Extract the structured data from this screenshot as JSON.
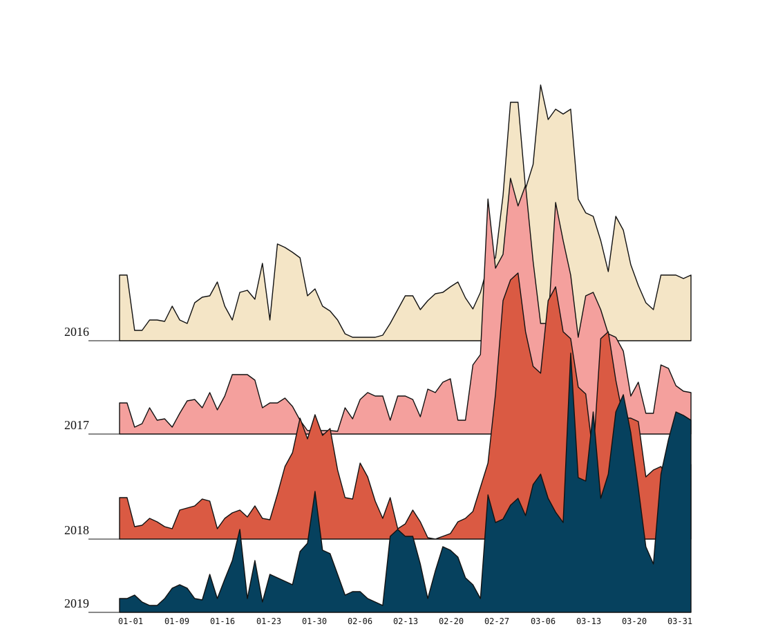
{
  "chart_data": {
    "type": "area",
    "subtype": "ridgeline",
    "title": "",
    "xlabel": "",
    "ylabel": "",
    "x_range": [
      "01-01",
      "03-31"
    ],
    "tick_labels": [
      "01-01",
      "01-09",
      "01-16",
      "01-23",
      "01-30",
      "02-06",
      "02-13",
      "02-20",
      "02-27",
      "03-06",
      "03-13",
      "03-20",
      "03-31"
    ],
    "y_range": [
      0,
      420
    ],
    "series": [
      {
        "name": "2016",
        "color": "#f4e5c6",
        "points": [
          [
            0,
            95
          ],
          [
            1,
            95
          ],
          [
            2,
            15
          ],
          [
            3,
            15
          ],
          [
            4,
            30
          ],
          [
            5,
            30
          ],
          [
            6,
            28
          ],
          [
            7,
            50
          ],
          [
            8,
            30
          ],
          [
            9,
            25
          ],
          [
            10,
            55
          ],
          [
            11,
            63
          ],
          [
            12,
            65
          ],
          [
            13,
            85
          ],
          [
            14,
            50
          ],
          [
            15,
            30
          ],
          [
            16,
            70
          ],
          [
            17,
            73
          ],
          [
            18,
            60
          ],
          [
            19,
            112
          ],
          [
            20,
            30
          ],
          [
            21,
            140
          ],
          [
            22,
            135
          ],
          [
            23,
            128
          ],
          [
            24,
            120
          ],
          [
            25,
            65
          ],
          [
            26,
            75
          ],
          [
            27,
            50
          ],
          [
            28,
            43
          ],
          [
            29,
            30
          ],
          [
            30,
            10
          ],
          [
            31,
            5
          ],
          [
            32,
            5
          ],
          [
            33,
            5
          ],
          [
            34,
            5
          ],
          [
            35,
            8
          ],
          [
            36,
            25
          ],
          [
            37,
            45
          ],
          [
            38,
            65
          ],
          [
            39,
            65
          ],
          [
            40,
            45
          ],
          [
            41,
            58
          ],
          [
            42,
            68
          ],
          [
            43,
            70
          ],
          [
            44,
            78
          ],
          [
            45,
            85
          ],
          [
            46,
            62
          ],
          [
            47,
            46
          ],
          [
            48,
            70
          ],
          [
            49,
            110
          ],
          [
            50,
            120
          ],
          [
            51,
            210
          ],
          [
            52,
            345
          ],
          [
            53,
            345
          ],
          [
            54,
            220
          ],
          [
            55,
            255
          ],
          [
            56,
            370
          ],
          [
            57,
            320
          ],
          [
            58,
            335
          ],
          [
            59,
            328
          ],
          [
            60,
            335
          ],
          [
            61,
            205
          ],
          [
            62,
            185
          ],
          [
            63,
            180
          ],
          [
            64,
            145
          ],
          [
            65,
            100
          ],
          [
            66,
            180
          ],
          [
            67,
            160
          ],
          [
            68,
            110
          ],
          [
            69,
            80
          ],
          [
            70,
            55
          ],
          [
            71,
            45
          ],
          [
            72,
            95
          ],
          [
            73,
            95
          ],
          [
            74,
            95
          ],
          [
            75,
            90
          ],
          [
            76,
            95
          ]
        ]
      },
      {
        "name": "2017",
        "color": "#f4a09d",
        "points": [
          [
            0,
            45
          ],
          [
            1,
            45
          ],
          [
            2,
            10
          ],
          [
            3,
            15
          ],
          [
            4,
            38
          ],
          [
            5,
            20
          ],
          [
            6,
            22
          ],
          [
            7,
            10
          ],
          [
            8,
            30
          ],
          [
            9,
            48
          ],
          [
            10,
            50
          ],
          [
            11,
            38
          ],
          [
            12,
            60
          ],
          [
            13,
            35
          ],
          [
            14,
            55
          ],
          [
            15,
            86
          ],
          [
            16,
            86
          ],
          [
            17,
            86
          ],
          [
            18,
            78
          ],
          [
            19,
            38
          ],
          [
            20,
            45
          ],
          [
            21,
            45
          ],
          [
            22,
            52
          ],
          [
            23,
            40
          ],
          [
            24,
            20
          ],
          [
            25,
            5
          ],
          [
            26,
            5
          ],
          [
            27,
            5
          ],
          [
            28,
            5
          ],
          [
            29,
            4
          ],
          [
            30,
            38
          ],
          [
            31,
            22
          ],
          [
            32,
            50
          ],
          [
            33,
            60
          ],
          [
            34,
            55
          ],
          [
            35,
            55
          ],
          [
            36,
            20
          ],
          [
            37,
            55
          ],
          [
            38,
            55
          ],
          [
            39,
            50
          ],
          [
            40,
            25
          ],
          [
            41,
            65
          ],
          [
            42,
            60
          ],
          [
            43,
            75
          ],
          [
            44,
            80
          ],
          [
            45,
            20
          ],
          [
            46,
            20
          ],
          [
            47,
            100
          ],
          [
            48,
            115
          ],
          [
            49,
            340
          ],
          [
            50,
            240
          ],
          [
            51,
            260
          ],
          [
            52,
            370
          ],
          [
            53,
            330
          ],
          [
            54,
            360
          ],
          [
            55,
            250
          ],
          [
            56,
            160
          ],
          [
            57,
            160
          ],
          [
            58,
            335
          ],
          [
            59,
            280
          ],
          [
            60,
            230
          ],
          [
            61,
            140
          ],
          [
            62,
            200
          ],
          [
            63,
            205
          ],
          [
            64,
            180
          ],
          [
            65,
            145
          ],
          [
            66,
            140
          ],
          [
            67,
            120
          ],
          [
            68,
            55
          ],
          [
            69,
            75
          ],
          [
            70,
            30
          ],
          [
            71,
            30
          ],
          [
            72,
            100
          ],
          [
            73,
            95
          ],
          [
            74,
            70
          ],
          [
            75,
            62
          ],
          [
            76,
            60
          ]
        ]
      },
      {
        "name": "2018",
        "color": "#da5a43",
        "points": [
          [
            0,
            60
          ],
          [
            1,
            60
          ],
          [
            2,
            18
          ],
          [
            3,
            20
          ],
          [
            4,
            30
          ],
          [
            5,
            25
          ],
          [
            6,
            18
          ],
          [
            7,
            15
          ],
          [
            8,
            42
          ],
          [
            9,
            45
          ],
          [
            10,
            48
          ],
          [
            11,
            58
          ],
          [
            12,
            55
          ],
          [
            13,
            15
          ],
          [
            14,
            30
          ],
          [
            15,
            38
          ],
          [
            16,
            42
          ],
          [
            17,
            32
          ],
          [
            18,
            48
          ],
          [
            19,
            30
          ],
          [
            20,
            28
          ],
          [
            21,
            65
          ],
          [
            22,
            105
          ],
          [
            23,
            125
          ],
          [
            24,
            175
          ],
          [
            25,
            145
          ],
          [
            26,
            180
          ],
          [
            27,
            150
          ],
          [
            28,
            160
          ],
          [
            29,
            100
          ],
          [
            30,
            60
          ],
          [
            31,
            58
          ],
          [
            32,
            110
          ],
          [
            33,
            90
          ],
          [
            34,
            55
          ],
          [
            35,
            30
          ],
          [
            36,
            60
          ],
          [
            37,
            15
          ],
          [
            38,
            22
          ],
          [
            39,
            42
          ],
          [
            40,
            25
          ],
          [
            41,
            2
          ],
          [
            42,
            0
          ],
          [
            43,
            4
          ],
          [
            44,
            8
          ],
          [
            45,
            25
          ],
          [
            46,
            30
          ],
          [
            47,
            40
          ],
          [
            48,
            75
          ],
          [
            49,
            110
          ],
          [
            50,
            210
          ],
          [
            51,
            345
          ],
          [
            52,
            375
          ],
          [
            53,
            385
          ],
          [
            54,
            300
          ],
          [
            55,
            250
          ],
          [
            56,
            240
          ],
          [
            57,
            345
          ],
          [
            58,
            365
          ],
          [
            59,
            300
          ],
          [
            60,
            290
          ],
          [
            61,
            220
          ],
          [
            62,
            210
          ],
          [
            63,
            120
          ],
          [
            64,
            290
          ],
          [
            65,
            300
          ],
          [
            66,
            230
          ],
          [
            67,
            175
          ],
          [
            68,
            175
          ],
          [
            69,
            170
          ],
          [
            70,
            90
          ],
          [
            71,
            100
          ],
          [
            72,
            105
          ],
          [
            73,
            85
          ],
          [
            74,
            110
          ],
          [
            75,
            115
          ],
          [
            76,
            108
          ]
        ]
      },
      {
        "name": "2019",
        "color": "#06415e",
        "points": [
          [
            0,
            20
          ],
          [
            1,
            20
          ],
          [
            2,
            25
          ],
          [
            3,
            15
          ],
          [
            4,
            10
          ],
          [
            5,
            10
          ],
          [
            6,
            20
          ],
          [
            7,
            35
          ],
          [
            8,
            40
          ],
          [
            9,
            35
          ],
          [
            10,
            20
          ],
          [
            11,
            18
          ],
          [
            12,
            55
          ],
          [
            13,
            20
          ],
          [
            14,
            48
          ],
          [
            15,
            75
          ],
          [
            16,
            120
          ],
          [
            17,
            20
          ],
          [
            18,
            75
          ],
          [
            19,
            15
          ],
          [
            20,
            55
          ],
          [
            21,
            50
          ],
          [
            22,
            45
          ],
          [
            23,
            40
          ],
          [
            24,
            88
          ],
          [
            25,
            100
          ],
          [
            26,
            175
          ],
          [
            27,
            90
          ],
          [
            28,
            85
          ],
          [
            29,
            55
          ],
          [
            30,
            25
          ],
          [
            31,
            30
          ],
          [
            32,
            30
          ],
          [
            33,
            20
          ],
          [
            34,
            15
          ],
          [
            35,
            10
          ],
          [
            36,
            110
          ],
          [
            37,
            120
          ],
          [
            38,
            110
          ],
          [
            39,
            110
          ],
          [
            40,
            70
          ],
          [
            41,
            20
          ],
          [
            42,
            60
          ],
          [
            43,
            95
          ],
          [
            44,
            90
          ],
          [
            45,
            80
          ],
          [
            46,
            50
          ],
          [
            47,
            40
          ],
          [
            48,
            20
          ],
          [
            49,
            170
          ],
          [
            50,
            130
          ],
          [
            51,
            135
          ],
          [
            52,
            155
          ],
          [
            53,
            165
          ],
          [
            54,
            140
          ],
          [
            55,
            185
          ],
          [
            56,
            200
          ],
          [
            57,
            165
          ],
          [
            58,
            145
          ],
          [
            59,
            130
          ],
          [
            60,
            375
          ],
          [
            61,
            195
          ],
          [
            62,
            190
          ],
          [
            63,
            290
          ],
          [
            64,
            165
          ],
          [
            65,
            200
          ],
          [
            66,
            290
          ],
          [
            67,
            315
          ],
          [
            68,
            260
          ],
          [
            69,
            180
          ],
          [
            70,
            95
          ],
          [
            71,
            70
          ],
          [
            72,
            200
          ],
          [
            73,
            250
          ],
          [
            74,
            290
          ],
          [
            75,
            285
          ],
          [
            76,
            278
          ]
        ]
      }
    ]
  }
}
